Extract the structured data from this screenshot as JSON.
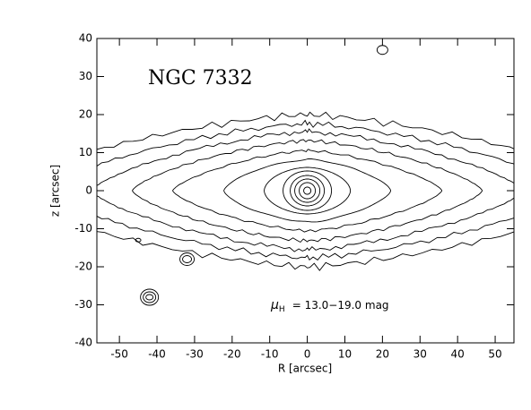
{
  "chart_data": {
    "type": "contour",
    "title": "NGC 7332",
    "annotation": {
      "symbol": "μ",
      "subscript": "H",
      "text": "= 13.0−19.0 mag"
    },
    "xlabel": "R [arcsec]",
    "ylabel": "z [arcsec]",
    "xlim": [
      -56,
      55
    ],
    "ylim": [
      -40,
      40
    ],
    "xticks": [
      -50,
      -40,
      -30,
      -20,
      -10,
      0,
      10,
      20,
      30,
      40,
      50
    ],
    "yticks": [
      -40,
      -30,
      -20,
      -10,
      0,
      10,
      20,
      30,
      40
    ],
    "color": "#000000"
  }
}
